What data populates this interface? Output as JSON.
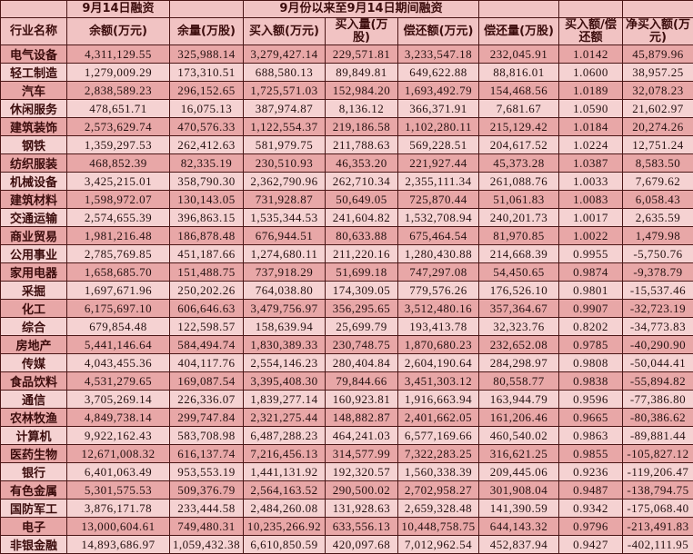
{
  "colors": {
    "row_dark": "#e8a7a7",
    "row_light": "#f5d2d2",
    "header_bg": "#f1c3c3",
    "border": "#4a1616",
    "name_text": "#3c0d0d",
    "number_text": "#241010"
  },
  "chart_data": {
    "type": "table",
    "top_header": {
      "sep14_group": "9月14日融资",
      "period_group": "9月份以来至9月14日期间融资"
    },
    "columns": [
      "行业名称",
      "余额(万元)",
      "余量(万股)",
      "买入额(万元)",
      "买入量(万股)",
      "偿还额(万元)",
      "偿还量(万股)",
      "买入额/偿还额",
      "净买入额(万元)"
    ],
    "rows": [
      [
        "电气设备",
        "4,311,129.55",
        "325,988.14",
        "3,279,427.14",
        "229,571.81",
        "3,233,547.18",
        "232,045.91",
        "1.0142",
        "45,879.96"
      ],
      [
        "轻工制造",
        "1,279,009.29",
        "173,310.51",
        "688,580.13",
        "89,849.81",
        "649,622.88",
        "88,816.01",
        "1.0600",
        "38,957.25"
      ],
      [
        "汽车",
        "2,838,589.23",
        "296,152.65",
        "1,725,571.03",
        "152,984.20",
        "1,693,492.79",
        "154,468.56",
        "1.0189",
        "32,078.23"
      ],
      [
        "休闲服务",
        "478,651.71",
        "16,075.13",
        "387,974.87",
        "8,136.12",
        "366,371.91",
        "7,681.67",
        "1.0590",
        "21,602.97"
      ],
      [
        "建筑装饰",
        "2,573,629.74",
        "470,576.33",
        "1,122,554.37",
        "219,186.58",
        "1,102,280.11",
        "215,129.42",
        "1.0184",
        "20,274.26"
      ],
      [
        "钢铁",
        "1,359,297.53",
        "262,412.63",
        "581,979.75",
        "211,788.63",
        "569,228.51",
        "204,617.52",
        "1.0224",
        "12,751.24"
      ],
      [
        "纺织服装",
        "468,852.39",
        "82,335.19",
        "230,510.93",
        "46,353.20",
        "221,927.44",
        "45,373.28",
        "1.0387",
        "8,583.50"
      ],
      [
        "机械设备",
        "3,425,215.01",
        "358,790.30",
        "2,362,790.96",
        "262,710.34",
        "2,355,111.34",
        "261,088.76",
        "1.0033",
        "7,679.62"
      ],
      [
        "建筑材料",
        "1,598,972.07",
        "130,143.05",
        "731,928.87",
        "50,649.05",
        "725,870.44",
        "51,061.83",
        "1.0083",
        "6,058.43"
      ],
      [
        "交通运输",
        "2,574,655.39",
        "396,863.15",
        "1,535,344.53",
        "241,604.82",
        "1,532,708.94",
        "240,201.73",
        "1.0017",
        "2,635.59"
      ],
      [
        "商业贸易",
        "1,981,216.48",
        "186,878.48",
        "676,944.51",
        "80,633.88",
        "675,464.54",
        "81,970.85",
        "1.0022",
        "1,479.98"
      ],
      [
        "公用事业",
        "2,785,769.85",
        "451,187.66",
        "1,274,680.11",
        "211,220.16",
        "1,280,430.88",
        "214,668.39",
        "0.9955",
        "-5,750.76"
      ],
      [
        "家用电器",
        "1,658,685.70",
        "151,488.75",
        "737,918.29",
        "51,699.18",
        "747,297.08",
        "54,450.65",
        "0.9874",
        "-9,378.79"
      ],
      [
        "采掘",
        "1,697,671.96",
        "250,202.26",
        "764,038.80",
        "174,309.05",
        "779,576.26",
        "176,526.10",
        "0.9801",
        "-15,537.46"
      ],
      [
        "化工",
        "6,175,697.10",
        "606,646.63",
        "3,479,756.97",
        "356,295.65",
        "3,512,480.16",
        "357,364.67",
        "0.9907",
        "-32,723.19"
      ],
      [
        "综合",
        "679,854.48",
        "122,598.57",
        "158,639.94",
        "25,699.79",
        "193,413.78",
        "32,323.76",
        "0.8202",
        "-34,773.83"
      ],
      [
        "房地产",
        "5,441,146.64",
        "584,494.74",
        "1,830,389.33",
        "230,748.75",
        "1,870,680.23",
        "232,652.08",
        "0.9785",
        "-40,290.90"
      ],
      [
        "传媒",
        "4,043,455.36",
        "404,117.76",
        "2,554,146.23",
        "280,404.84",
        "2,604,190.64",
        "284,298.97",
        "0.9808",
        "-50,044.41"
      ],
      [
        "食品饮料",
        "4,531,279.65",
        "169,087.54",
        "3,395,408.30",
        "79,844.66",
        "3,451,303.12",
        "80,558.77",
        "0.9838",
        "-55,894.82"
      ],
      [
        "通信",
        "3,705,269.14",
        "226,336.07",
        "1,839,277.14",
        "160,923.81",
        "1,916,663.94",
        "163,944.79",
        "0.9596",
        "-77,386.80"
      ],
      [
        "农林牧渔",
        "4,849,738.14",
        "299,747.84",
        "2,321,275.44",
        "148,882.87",
        "2,401,662.05",
        "161,206.46",
        "0.9665",
        "-80,386.62"
      ],
      [
        "计算机",
        "9,922,162.43",
        "583,708.98",
        "6,487,288.23",
        "464,241.03",
        "6,577,169.66",
        "460,540.02",
        "0.9863",
        "-89,881.44"
      ],
      [
        "医药生物",
        "12,671,008.32",
        "616,137.74",
        "7,216,456.13",
        "314,577.99",
        "7,322,283.25",
        "316,621.25",
        "0.9855",
        "-105,827.12"
      ],
      [
        "银行",
        "6,401,063.49",
        "953,553.19",
        "1,441,131.92",
        "192,320.57",
        "1,560,338.39",
        "209,445.06",
        "0.9236",
        "-119,206.47"
      ],
      [
        "有色金属",
        "5,301,575.53",
        "509,376.79",
        "2,564,163.52",
        "290,500.02",
        "2,702,958.27",
        "301,908.04",
        "0.9487",
        "-138,794.75"
      ],
      [
        "国防军工",
        "3,876,171.78",
        "233,444.58",
        "2,484,260.08",
        "131,928.63",
        "2,659,328.48",
        "141,390.59",
        "0.9342",
        "-175,068.40"
      ],
      [
        "电子",
        "13,000,604.61",
        "749,480.31",
        "10,235,266.92",
        "633,556.13",
        "10,448,758.75",
        "644,143.32",
        "0.9796",
        "-213,491.83"
      ],
      [
        "非银金融",
        "14,893,686.97",
        "1,059,432.38",
        "6,610,850.59",
        "420,097.68",
        "7,012,962.54",
        "452,837.94",
        "0.9427",
        "-402,111.95"
      ]
    ]
  }
}
